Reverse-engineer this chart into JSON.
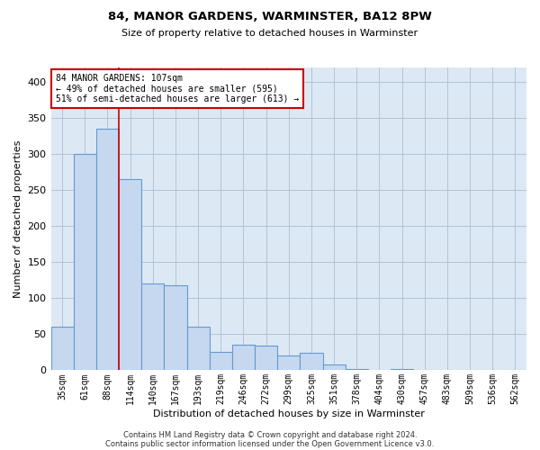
{
  "title1": "84, MANOR GARDENS, WARMINSTER, BA12 8PW",
  "title2": "Size of property relative to detached houses in Warminster",
  "xlabel": "Distribution of detached houses by size in Warminster",
  "ylabel": "Number of detached properties",
  "bins": [
    "35sqm",
    "61sqm",
    "88sqm",
    "114sqm",
    "140sqm",
    "167sqm",
    "193sqm",
    "219sqm",
    "246sqm",
    "272sqm",
    "299sqm",
    "325sqm",
    "351sqm",
    "378sqm",
    "404sqm",
    "430sqm",
    "457sqm",
    "483sqm",
    "509sqm",
    "536sqm",
    "562sqm"
  ],
  "bar_values": [
    60,
    300,
    335,
    265,
    120,
    118,
    60,
    25,
    35,
    34,
    20,
    24,
    8,
    2,
    1,
    2,
    0,
    1,
    0,
    0,
    1
  ],
  "bar_color": "#c5d8f0",
  "bar_edge_color": "#6699cc",
  "bar_linewidth": 0.8,
  "vline_x": 2.5,
  "vline_color": "#cc0000",
  "vline_linewidth": 1.2,
  "annotation_text": "84 MANOR GARDENS: 107sqm\n← 49% of detached houses are smaller (595)\n51% of semi-detached houses are larger (613) →",
  "annotation_box_color": "#ffffff",
  "annotation_box_edge": "#cc0000",
  "ylim": [
    0,
    420
  ],
  "yticks": [
    0,
    50,
    100,
    150,
    200,
    250,
    300,
    350,
    400
  ],
  "grid_color": "#b0c4d8",
  "bg_color": "#dce9f5",
  "footer1": "Contains HM Land Registry data © Crown copyright and database right 2024.",
  "footer2": "Contains public sector information licensed under the Open Government Licence v3.0."
}
